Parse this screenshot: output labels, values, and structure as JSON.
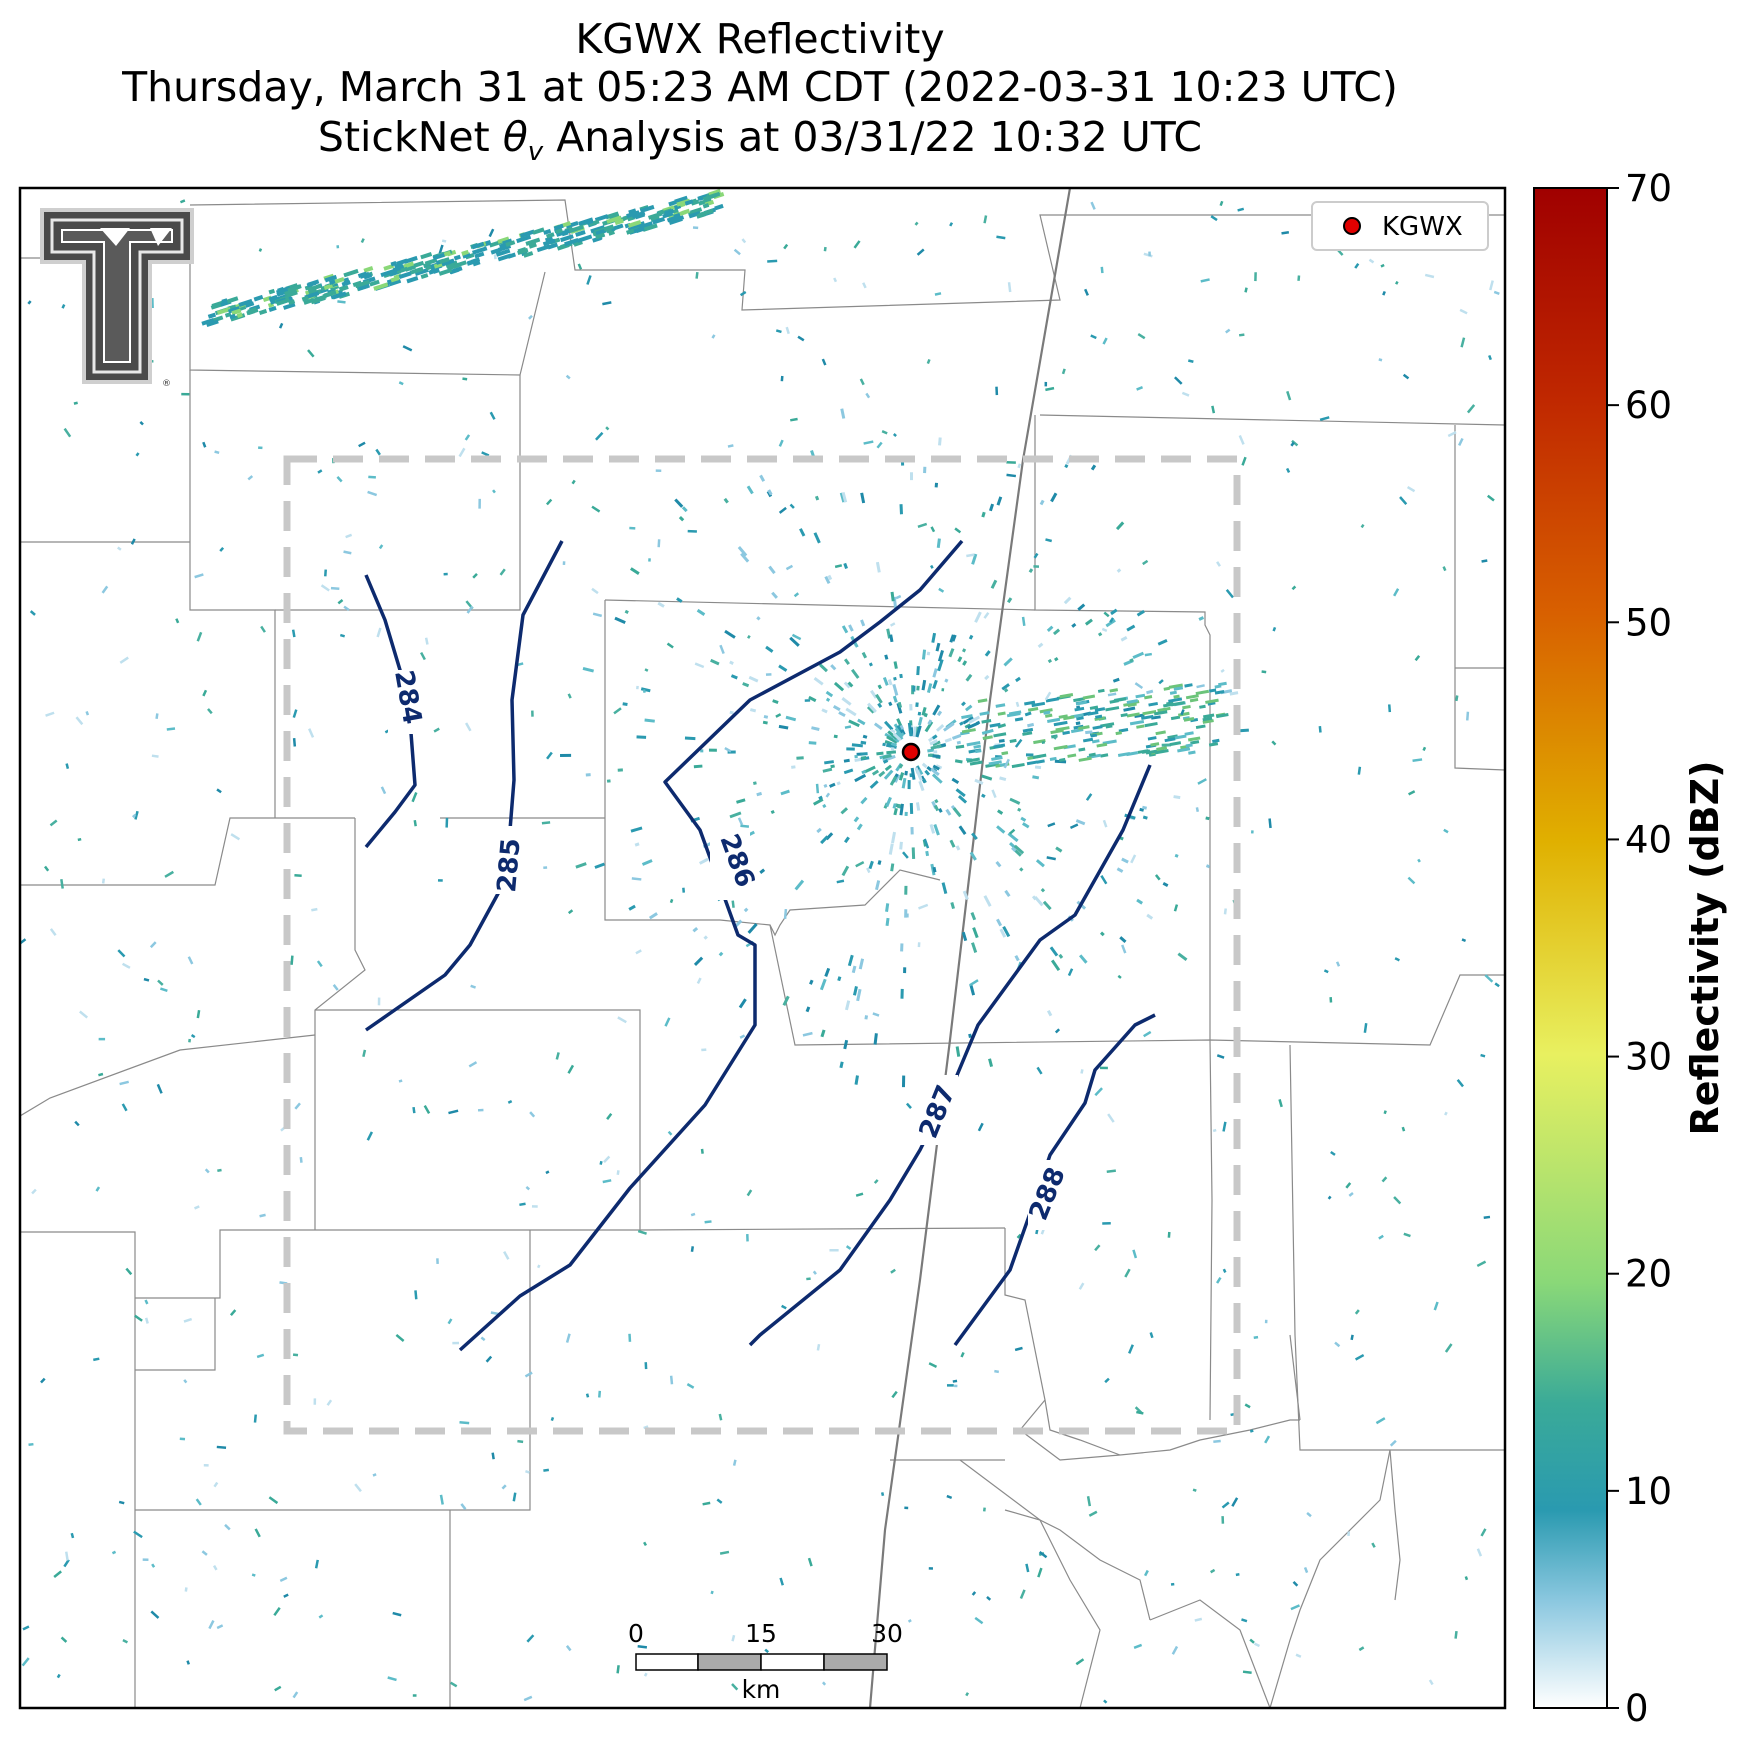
{
  "title": {
    "line1": "KGWX Reflectivity",
    "line2": "Thursday, March 31 at 05:23 AM CDT (2022-03-31 10:23 UTC)",
    "line3_prefix": "StickNet ",
    "line3_theta": "θ",
    "line3_sub": "v",
    "line3_suffix": " Analysis at 03/31/22 10:32 UTC"
  },
  "legend": {
    "label": "KGWX",
    "marker_color": "#e00000"
  },
  "colorbar": {
    "label": "Reflectivity (dBZ)",
    "min": 0,
    "max": 70,
    "ticks": [
      "0",
      "10",
      "20",
      "30",
      "40",
      "50",
      "60",
      "70"
    ],
    "colors": [
      "#ffffff",
      "#2a9ab0",
      "#6cc47a",
      "#e8f060",
      "#e0b000",
      "#d86000",
      "#a00000"
    ]
  },
  "contours": {
    "color": "#0d2a6e",
    "labels": [
      "284",
      "285",
      "286",
      "287",
      "288"
    ]
  },
  "scale_bar": {
    "ticks": [
      "0",
      "15",
      "30"
    ],
    "unit": "km"
  },
  "logo": {
    "name": "Texas Tech Double T",
    "text": "T"
  },
  "colors": {
    "analysis_box": "#c8c8c8",
    "county_lines": "#777777",
    "state_line": "#888888"
  }
}
